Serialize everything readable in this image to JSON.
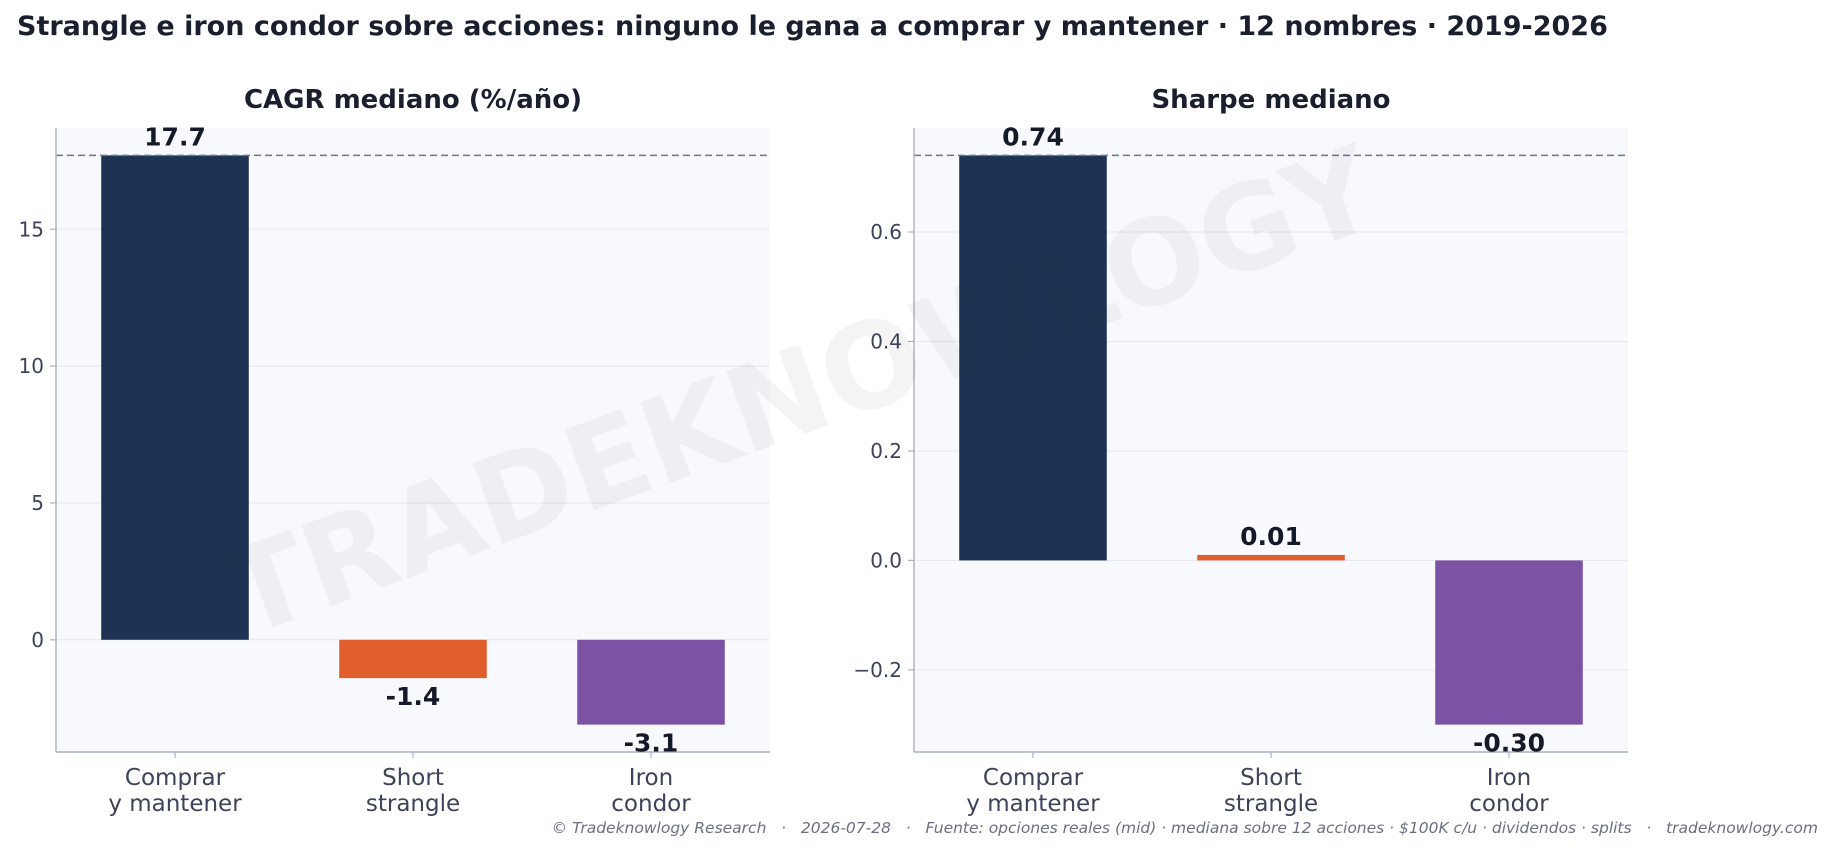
{
  "title": "Strangle e iron condor sobre acciones: ninguno le gana a comprar y mantener · 12 nombres · 2019-2026",
  "watermark": "TRADEKNOWLOGY",
  "footer": "© Tradeknowlogy Research   ·   2026-07-28   ·   Fuente: opciones reales (mid) · mediana sobre 12 acciones · $100K c/u · dividendos · splits   ·   tradeknowlogy.com",
  "colors": {
    "buy_hold": "#1e3354",
    "strangle": "#e05d2c",
    "iron_condor": "#7b52a4",
    "panel_bg": "#f8f9fc",
    "reference_line": "#6b7594"
  },
  "chart_data": [
    {
      "type": "bar",
      "title": "CAGR mediano (%/año)",
      "categories": [
        [
          "Comprar",
          "y mantener"
        ],
        [
          "Short",
          "strangle"
        ],
        [
          "Iron",
          "condor"
        ]
      ],
      "values": [
        17.7,
        -1.4,
        -3.1
      ],
      "value_labels": [
        "17.7",
        "-1.4",
        "-3.1"
      ],
      "yticks": [
        0,
        5,
        10,
        15
      ],
      "ytick_labels": [
        "0",
        "5",
        "10",
        "15"
      ],
      "ylim": [
        -4.1,
        18.7
      ],
      "reference_line": 17.7,
      "grid": true
    },
    {
      "type": "bar",
      "title": "Sharpe mediano",
      "categories": [
        [
          "Comprar",
          "y mantener"
        ],
        [
          "Short",
          "strangle"
        ],
        [
          "Iron",
          "condor"
        ]
      ],
      "values": [
        0.74,
        0.01,
        -0.3
      ],
      "value_labels": [
        "0.74",
        "0.01",
        "-0.30"
      ],
      "yticks": [
        -0.2,
        0.0,
        0.2,
        0.4,
        0.6
      ],
      "ytick_labels": [
        "−0.2",
        "0.0",
        "0.2",
        "0.4",
        "0.6"
      ],
      "ylim": [
        -0.35,
        0.79
      ],
      "reference_line": 0.74,
      "grid": true
    }
  ]
}
